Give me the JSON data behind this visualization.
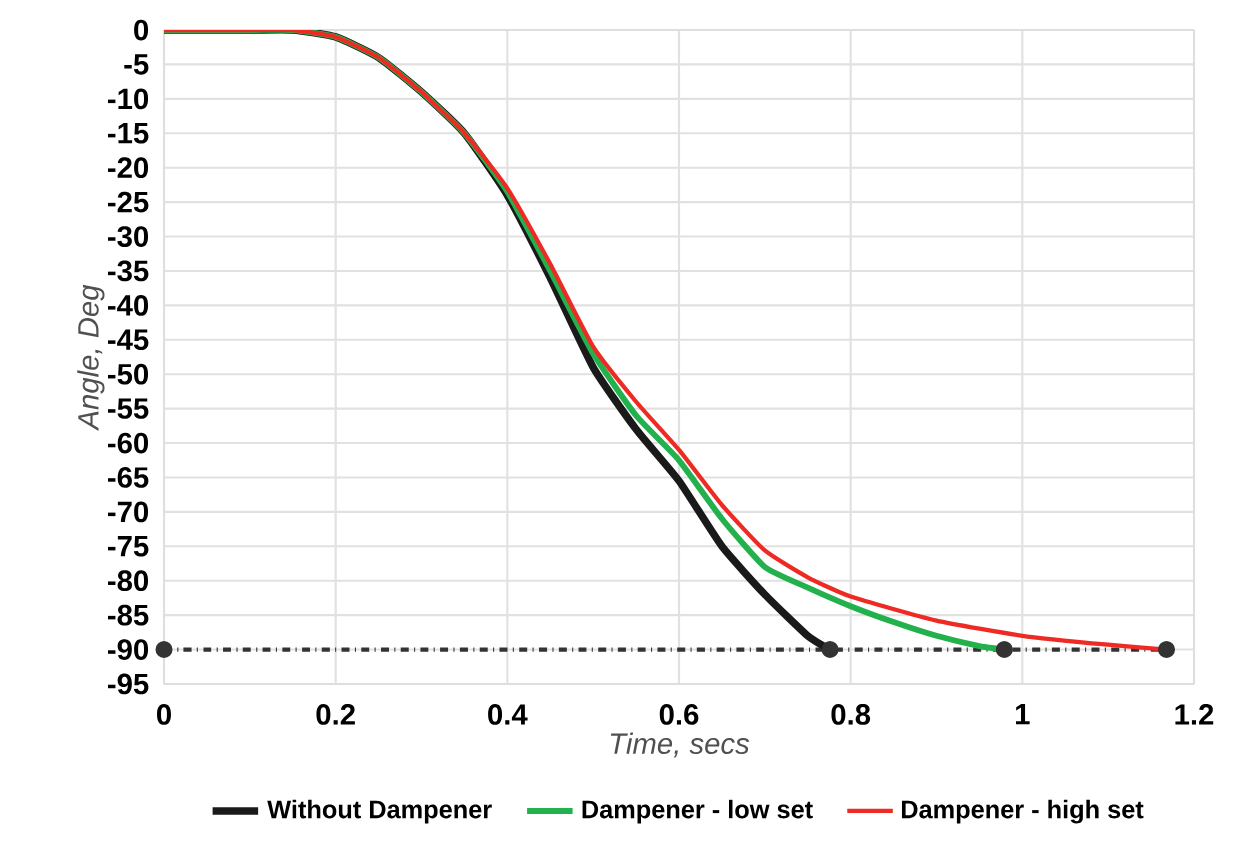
{
  "chart_data": {
    "type": "line",
    "xlabel": "Time, secs",
    "ylabel": "Angle, Deg",
    "xlim": [
      0,
      1.2
    ],
    "xticks": [
      0,
      0.2,
      0.4,
      0.6,
      0.8,
      1,
      1.2
    ],
    "ylim": [
      -95,
      0
    ],
    "yticks": [
      0,
      -5,
      -10,
      -15,
      -20,
      -25,
      -30,
      -35,
      -40,
      -45,
      -50,
      -55,
      -60,
      -65,
      -70,
      -75,
      -80,
      -85,
      -90,
      -95
    ],
    "grid": true,
    "legend": "bottom",
    "marker": "none",
    "line_style": "solid",
    "series": [
      {
        "name": "Without Dampener",
        "color": "#1a1a1a",
        "x": [
          0,
          0.1,
          0.15,
          0.2,
          0.25,
          0.3,
          0.35,
          0.4,
          0.45,
          0.5,
          0.55,
          0.6,
          0.65,
          0.7,
          0.75,
          0.776
        ],
        "values": [
          0,
          0,
          0,
          -1,
          -4,
          -9,
          -15,
          -24,
          -36,
          -49,
          -58,
          -65.5,
          -75,
          -82,
          -88,
          -90
        ]
      },
      {
        "name": "Dampener - low set",
        "color": "#22b14c",
        "x": [
          0,
          0.1,
          0.15,
          0.2,
          0.25,
          0.3,
          0.35,
          0.4,
          0.45,
          0.5,
          0.55,
          0.6,
          0.65,
          0.7,
          0.75,
          0.8,
          0.85,
          0.9,
          0.95,
          0.979
        ],
        "values": [
          0,
          0,
          0,
          -1,
          -4,
          -9,
          -15,
          -23.5,
          -35,
          -47,
          -56,
          -62.5,
          -71,
          -78,
          -81,
          -83.7,
          -86,
          -88,
          -89.5,
          -90
        ]
      },
      {
        "name": "Dampener - high set",
        "color": "#ee2a24",
        "x": [
          0,
          0.1,
          0.15,
          0.2,
          0.25,
          0.3,
          0.35,
          0.4,
          0.45,
          0.5,
          0.55,
          0.6,
          0.65,
          0.7,
          0.75,
          0.8,
          0.9,
          1.0,
          1.1,
          1.168
        ],
        "values": [
          0,
          0,
          0,
          -1,
          -4,
          -9,
          -15,
          -23,
          -34,
          -46,
          -54,
          -61,
          -69,
          -75.6,
          -79.5,
          -82.3,
          -85.8,
          -88,
          -89.3,
          -90
        ]
      },
      {
        "color": "#333333",
        "marker": "circle",
        "line_style": "dashed",
        "x": [
          0,
          0.776,
          0.979,
          1.168
        ],
        "values": [
          -90,
          -90,
          -90,
          -90
        ]
      }
    ]
  }
}
